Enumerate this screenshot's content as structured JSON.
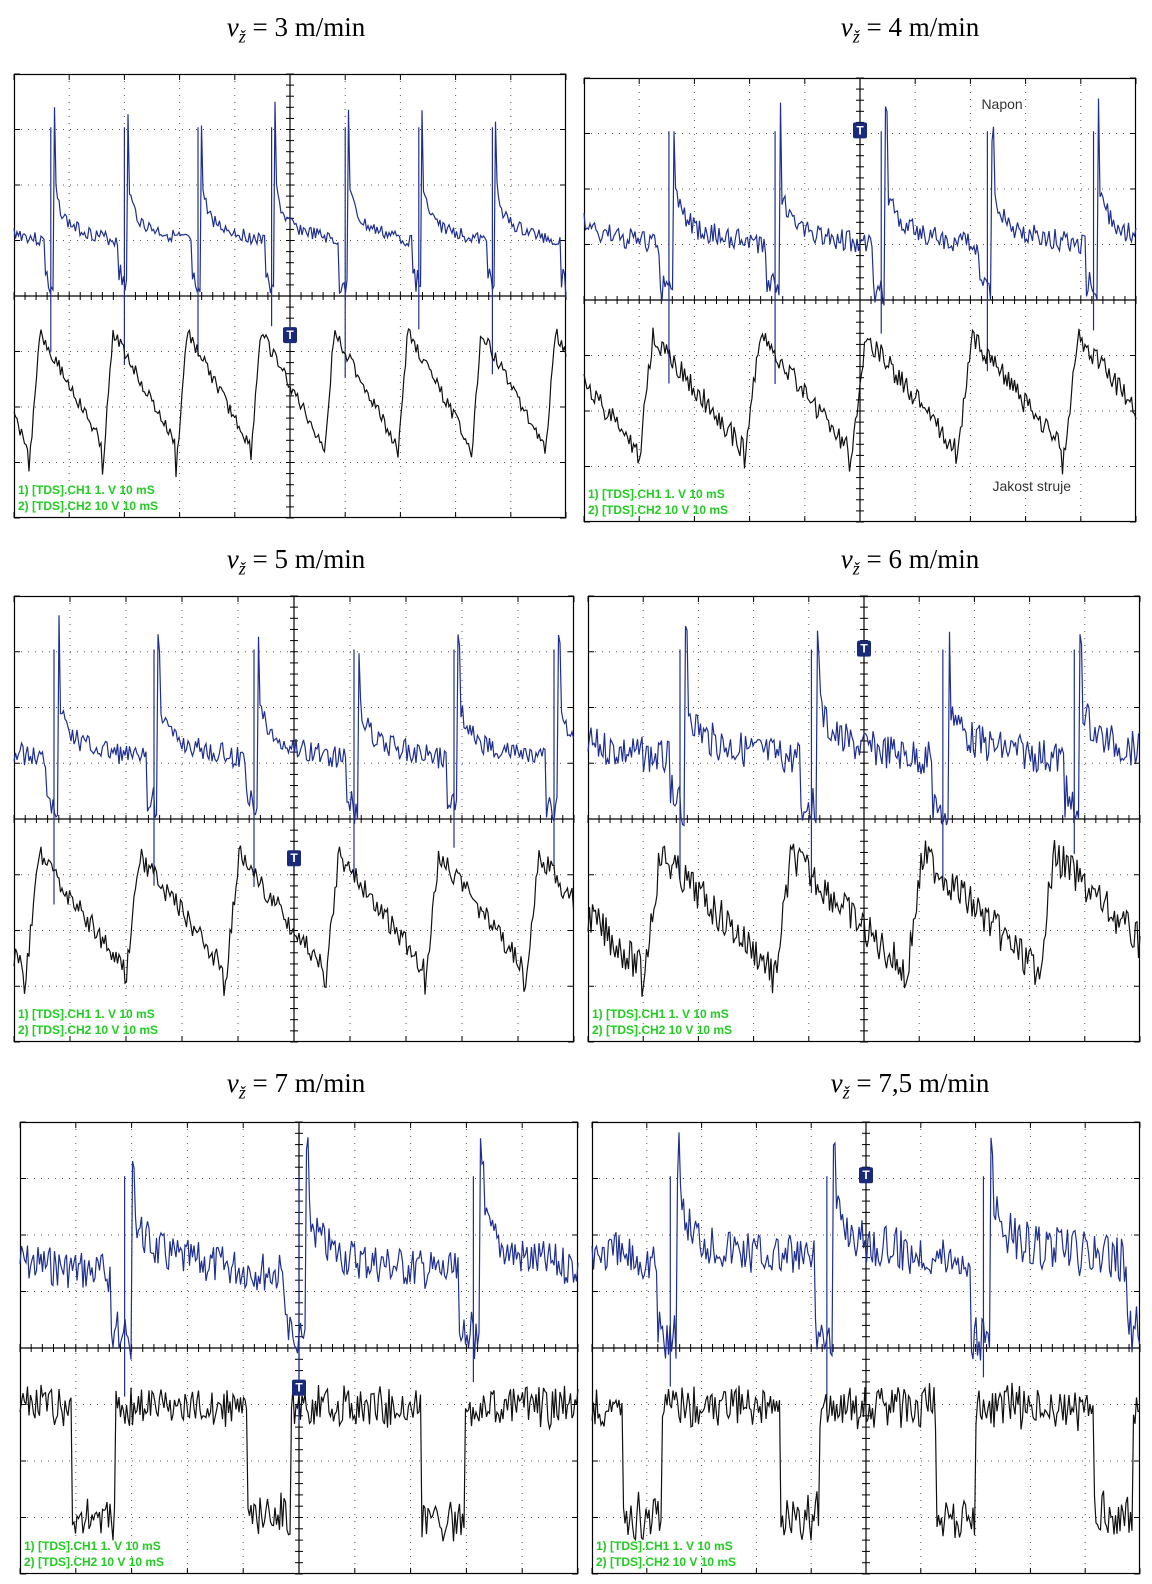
{
  "panels": [
    {
      "speed": "3",
      "unit": "m/min",
      "ch1": "1) [TDS].CH1  1. V   10 mS",
      "ch2": "2) [TDS].CH2  10 V   10 mS",
      "napon_label": "",
      "struja_label": "",
      "chart_data": {
        "type": "line",
        "series": [
          {
            "name": "CH1",
            "period": 7.5,
            "phase": 0.5,
            "plateau": 0.78,
            "noise": 0.03
          },
          {
            "name": "CH2",
            "period": 7.5,
            "phase": 0.8,
            "form": "sawtooth",
            "noise": 0.03
          }
        ]
      }
    },
    {
      "speed": "4",
      "unit": "m/min",
      "ch1": "1) [TDS].CH1  1. V   10 mS",
      "ch2": "2) [TDS].CH2  10 V   10 mS",
      "napon_label": "Napon",
      "struja_label": "Jakost struje",
      "chart_data": {
        "type": "line",
        "series": [
          {
            "name": "CH1",
            "period": 5.2,
            "phase": 0.2,
            "plateau": 0.78,
            "noise": 0.05
          },
          {
            "name": "CH2",
            "period": 5.2,
            "phase": 0.5,
            "form": "sawtooth",
            "noise": 0.05
          }
        ]
      }
    },
    {
      "speed": "5",
      "unit": "m/min",
      "ch1": "1) [TDS].CH1  1. V   10 mS",
      "ch2": "2) [TDS].CH2  10 V   10 mS",
      "napon_label": "",
      "struja_label": "",
      "chart_data": {
        "type": "line",
        "series": [
          {
            "name": "CH1",
            "period": 5.6,
            "phase": 0.6,
            "plateau": 0.8,
            "noise": 0.05
          },
          {
            "name": "CH2",
            "period": 5.6,
            "phase": 0.9,
            "form": "sawtooth",
            "noise": 0.05
          }
        ]
      }
    },
    {
      "speed": "6",
      "unit": "m/min",
      "ch1": "1) [TDS].CH1  1. V   10 mS",
      "ch2": "2) [TDS].CH2  10 V   10 mS",
      "napon_label": "",
      "struja_label": "",
      "chart_data": {
        "type": "line",
        "series": [
          {
            "name": "CH1",
            "period": 4.2,
            "phase": 0.3,
            "plateau": 0.8,
            "noise": 0.08
          },
          {
            "name": "CH2",
            "period": 4.2,
            "phase": 0.6,
            "form": "sawtooth",
            "noise": 0.08
          }
        ]
      }
    },
    {
      "speed": "7",
      "unit": "m/min",
      "ch1": "1) [TDS].CH1  1. V   10 mS",
      "ch2": "2) [TDS].CH2  10 V   10 mS",
      "napon_label": "",
      "struja_label": "",
      "chart_data": {
        "type": "line",
        "series": [
          {
            "name": "CH1",
            "period": 3.2,
            "phase": 0.4,
            "plateau": 0.85,
            "noise": 0.09
          },
          {
            "name": "CH2",
            "period": 3.2,
            "phase": 0.7,
            "form": "square",
            "noise": 0.08
          }
        ]
      }
    },
    {
      "speed": "7,5",
      "unit": "m/min",
      "ch1": "1) [TDS].CH1  1. V   10 mS",
      "ch2": "2) [TDS].CH2  10 V   10 mS",
      "napon_label": "",
      "struja_label": "",
      "chart_data": {
        "type": "line",
        "series": [
          {
            "name": "CH1",
            "period": 3.5,
            "phase": 0.5,
            "plateau": 0.9,
            "noise": 0.1
          },
          {
            "name": "CH2",
            "period": 3.5,
            "phase": 0.8,
            "form": "square",
            "noise": 0.09
          }
        ]
      }
    }
  ],
  "colors": {
    "ch1": "#1f2f8f",
    "ch2": "#111111",
    "legend": "#22cc22",
    "grid": "#000000",
    "trigger": "#1a2a7a"
  },
  "trigger_marker": "T"
}
